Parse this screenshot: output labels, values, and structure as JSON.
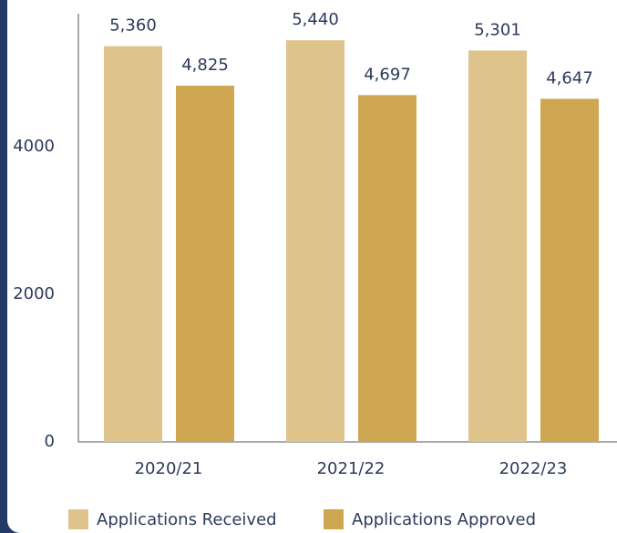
{
  "chart_data": {
    "type": "bar",
    "categories": [
      "2020/21",
      "2021/22",
      "2022/23"
    ],
    "series": [
      {
        "name": "Applications Received",
        "color": "#dec38a",
        "values": [
          5360,
          5440,
          5301
        ],
        "value_labels": [
          "5,360",
          "5,440",
          "5,301"
        ]
      },
      {
        "name": "Applications Approved",
        "color": "#cfa752",
        "values": [
          4825,
          4697,
          4647
        ],
        "value_labels": [
          "4,825",
          "4,697",
          "4,647"
        ]
      }
    ],
    "ylim": [
      0,
      5800
    ],
    "yticks": [
      0,
      2000,
      4000
    ],
    "grid": false,
    "legend": "bottom"
  }
}
